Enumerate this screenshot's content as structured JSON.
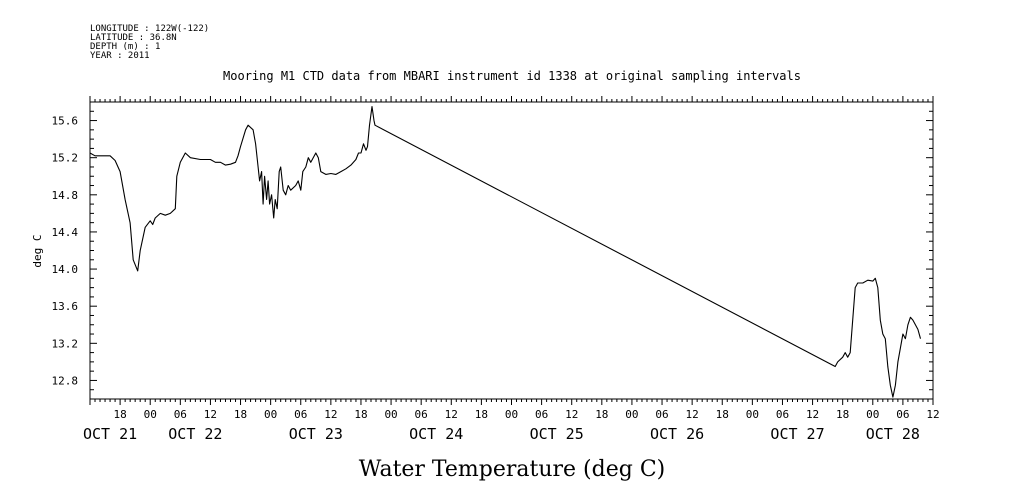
{
  "header": {
    "meta_lines": [
      "LONGITUDE : 122W(-122)",
      "LATITUDE : 36.8N",
      "DEPTH (m) : 1",
      "YEAR : 2011"
    ],
    "title": "Mooring M1 CTD data from MBARI instrument id 1338 at original sampling intervals"
  },
  "footer": {
    "title": "Water Temperature (deg C)"
  },
  "chart_data": {
    "type": "line",
    "title": "Mooring M1 CTD data from MBARI instrument id 1338 at original sampling intervals",
    "xlabel": "",
    "ylabel": "deg C",
    "x_unit": "hours since 2011-10-20 12:00",
    "xlim": [
      0,
      168
    ],
    "ylim": [
      12.6,
      15.8
    ],
    "grid": false,
    "y_ticks": [
      "12.8",
      "13.2",
      "13.6",
      "14.0",
      "14.4",
      "14.8",
      "15.2",
      "15.6"
    ],
    "x_hour_ticks": [
      {
        "x": 6,
        "label": "18"
      },
      {
        "x": 12,
        "label": "00"
      },
      {
        "x": 18,
        "label": "06"
      },
      {
        "x": 24,
        "label": "12"
      },
      {
        "x": 30,
        "label": "18"
      },
      {
        "x": 36,
        "label": "00"
      },
      {
        "x": 42,
        "label": "06"
      },
      {
        "x": 48,
        "label": "12"
      },
      {
        "x": 54,
        "label": "18"
      },
      {
        "x": 60,
        "label": "00"
      },
      {
        "x": 66,
        "label": "06"
      },
      {
        "x": 72,
        "label": "12"
      },
      {
        "x": 78,
        "label": "18"
      },
      {
        "x": 84,
        "label": "00"
      },
      {
        "x": 90,
        "label": "06"
      },
      {
        "x": 96,
        "label": "12"
      },
      {
        "x": 102,
        "label": "18"
      },
      {
        "x": 108,
        "label": "00"
      },
      {
        "x": 114,
        "label": "06"
      },
      {
        "x": 120,
        "label": "12"
      },
      {
        "x": 126,
        "label": "18"
      },
      {
        "x": 132,
        "label": "00"
      },
      {
        "x": 138,
        "label": "06"
      },
      {
        "x": 144,
        "label": "12"
      },
      {
        "x": 150,
        "label": "18"
      },
      {
        "x": 156,
        "label": "00"
      },
      {
        "x": 162,
        "label": "06"
      },
      {
        "x": 168,
        "label": "12"
      }
    ],
    "x_date_labels": [
      {
        "x": 4,
        "label": "OCT 21"
      },
      {
        "x": 21,
        "label": "OCT 22"
      },
      {
        "x": 45,
        "label": "OCT 23"
      },
      {
        "x": 69,
        "label": "OCT 24"
      },
      {
        "x": 93,
        "label": "OCT 25"
      },
      {
        "x": 117,
        "label": "OCT 26"
      },
      {
        "x": 141,
        "label": "OCT 27"
      },
      {
        "x": 160,
        "label": "OCT 28"
      }
    ],
    "series": [
      {
        "values": [
          [
            0,
            15.25
          ],
          [
            1,
            15.22
          ],
          [
            2,
            15.22
          ],
          [
            3,
            15.22
          ],
          [
            4,
            15.22
          ],
          [
            5,
            15.17
          ],
          [
            6,
            15.05
          ],
          [
            7,
            14.75
          ],
          [
            8,
            14.5
          ],
          [
            8.6,
            14.1
          ],
          [
            9.5,
            13.98
          ],
          [
            10,
            14.2
          ],
          [
            11,
            14.45
          ],
          [
            12,
            14.52
          ],
          [
            12.5,
            14.48
          ],
          [
            13,
            14.55
          ],
          [
            14,
            14.6
          ],
          [
            15,
            14.58
          ],
          [
            16,
            14.6
          ],
          [
            17,
            14.65
          ],
          [
            17.3,
            15.0
          ],
          [
            18,
            15.15
          ],
          [
            19,
            15.25
          ],
          [
            20,
            15.2
          ],
          [
            22,
            15.18
          ],
          [
            24,
            15.18
          ],
          [
            25,
            15.15
          ],
          [
            26,
            15.15
          ],
          [
            27,
            15.12
          ],
          [
            28,
            15.13
          ],
          [
            29,
            15.15
          ],
          [
            29.5,
            15.22
          ],
          [
            30,
            15.32
          ],
          [
            31,
            15.5
          ],
          [
            31.5,
            15.55
          ],
          [
            32.5,
            15.5
          ],
          [
            33,
            15.35
          ],
          [
            33.5,
            15.1
          ],
          [
            33.8,
            14.95
          ],
          [
            34.2,
            15.05
          ],
          [
            34.5,
            14.7
          ],
          [
            34.8,
            15.0
          ],
          [
            35.2,
            14.75
          ],
          [
            35.5,
            14.95
          ],
          [
            35.8,
            14.7
          ],
          [
            36.2,
            14.8
          ],
          [
            36.6,
            14.55
          ],
          [
            36.9,
            14.75
          ],
          [
            37.3,
            14.65
          ],
          [
            37.7,
            15.05
          ],
          [
            38,
            15.1
          ],
          [
            38.5,
            14.85
          ],
          [
            39,
            14.8
          ],
          [
            39.5,
            14.9
          ],
          [
            40,
            14.85
          ],
          [
            41,
            14.9
          ],
          [
            41.5,
            14.95
          ],
          [
            42,
            14.85
          ],
          [
            42.4,
            15.05
          ],
          [
            43,
            15.1
          ],
          [
            43.5,
            15.2
          ],
          [
            44,
            15.15
          ],
          [
            45,
            15.25
          ],
          [
            45.5,
            15.2
          ],
          [
            46,
            15.05
          ],
          [
            47,
            15.02
          ],
          [
            48,
            15.03
          ],
          [
            49,
            15.02
          ],
          [
            50,
            15.05
          ],
          [
            51,
            15.08
          ],
          [
            52,
            15.12
          ],
          [
            53,
            15.18
          ],
          [
            53.5,
            15.25
          ],
          [
            54,
            15.25
          ],
          [
            54.5,
            15.35
          ],
          [
            55,
            15.28
          ],
          [
            55.3,
            15.32
          ],
          [
            55.7,
            15.55
          ],
          [
            56.2,
            15.75
          ],
          [
            56.6,
            15.6
          ],
          [
            56.8,
            15.55
          ],
          [
            148.5,
            12.95
          ],
          [
            149,
            13.0
          ],
          [
            150,
            13.05
          ],
          [
            150.5,
            13.1
          ],
          [
            151,
            13.05
          ],
          [
            151.5,
            13.1
          ],
          [
            152,
            13.45
          ],
          [
            152.5,
            13.8
          ],
          [
            153,
            13.85
          ],
          [
            154,
            13.85
          ],
          [
            155,
            13.88
          ],
          [
            156,
            13.87
          ],
          [
            156.5,
            13.9
          ],
          [
            157,
            13.8
          ],
          [
            157.5,
            13.45
          ],
          [
            158,
            13.3
          ],
          [
            158.5,
            13.25
          ],
          [
            159,
            12.95
          ],
          [
            159.5,
            12.75
          ],
          [
            160,
            12.62
          ],
          [
            160.5,
            12.75
          ],
          [
            161,
            13.0
          ],
          [
            161.5,
            13.15
          ],
          [
            162,
            13.3
          ],
          [
            162.5,
            13.25
          ],
          [
            163,
            13.4
          ],
          [
            163.5,
            13.48
          ],
          [
            164,
            13.45
          ],
          [
            164.5,
            13.4
          ],
          [
            165,
            13.35
          ],
          [
            165.5,
            13.25
          ]
        ]
      }
    ]
  }
}
